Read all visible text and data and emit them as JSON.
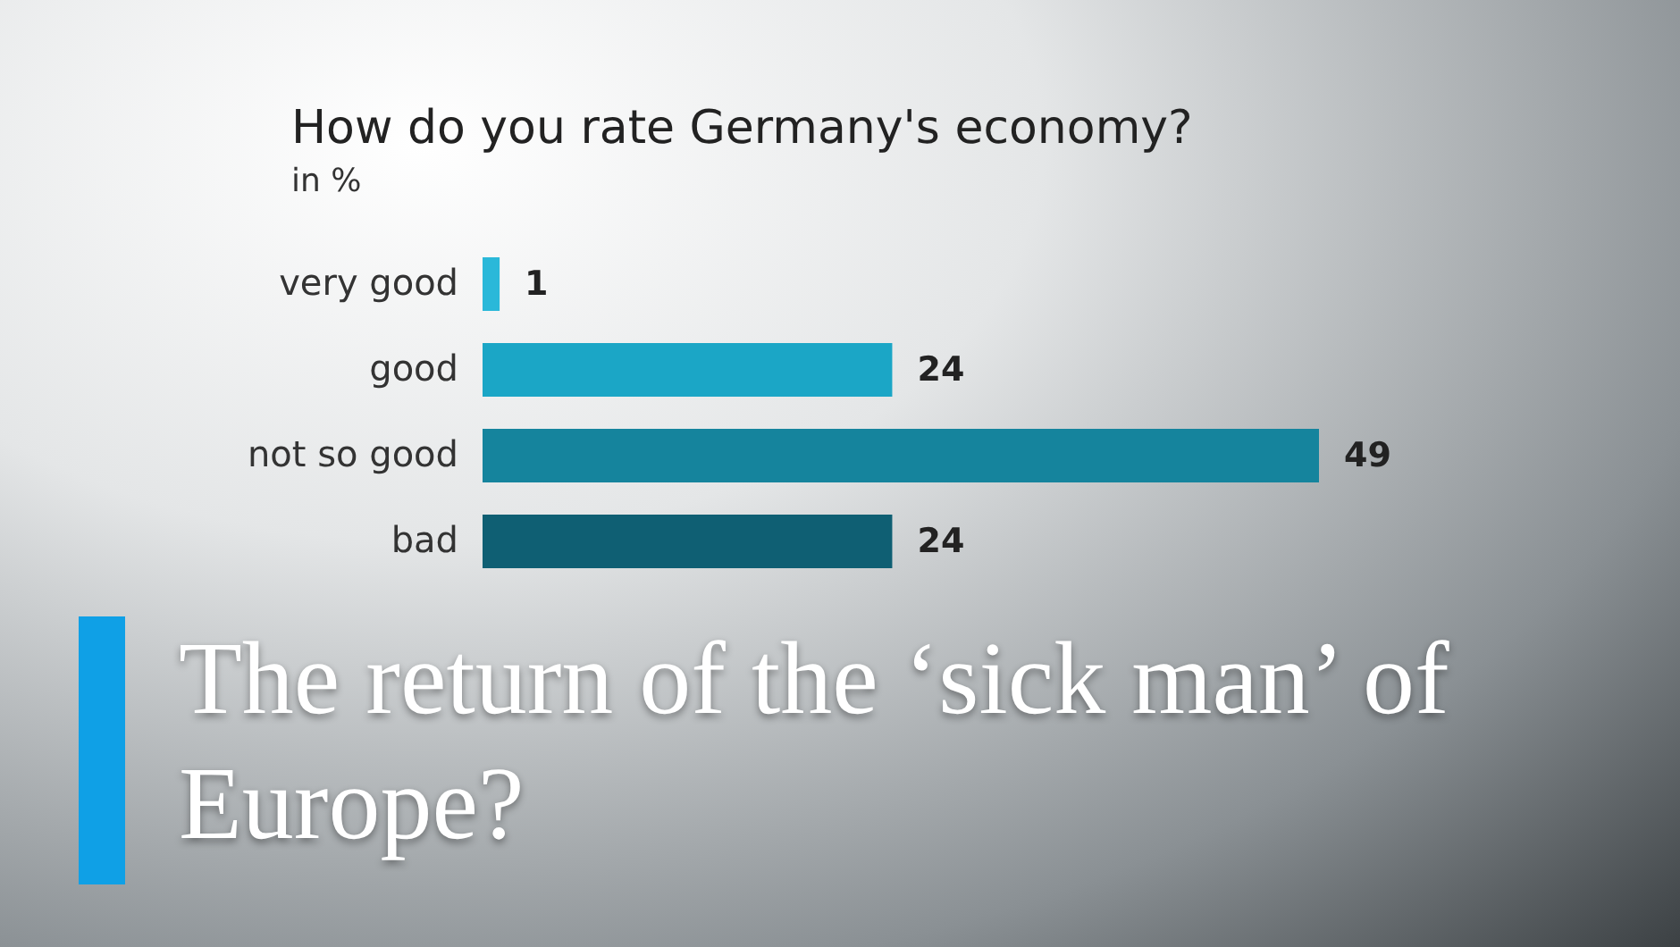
{
  "chart_data": {
    "type": "bar",
    "orientation": "horizontal",
    "title": "How do you rate Germany's economy?",
    "subtitle": "in %",
    "categories": [
      "very good",
      "good",
      "not so good",
      "bad"
    ],
    "values": [
      1,
      24,
      49,
      24
    ],
    "colors": [
      "#2ab8d9",
      "#1ba6c6",
      "#15849d",
      "#0f5f73"
    ],
    "data_labels": true,
    "annotations": [
      "The return of the ‘sick man’ of Europe?"
    ]
  }
}
